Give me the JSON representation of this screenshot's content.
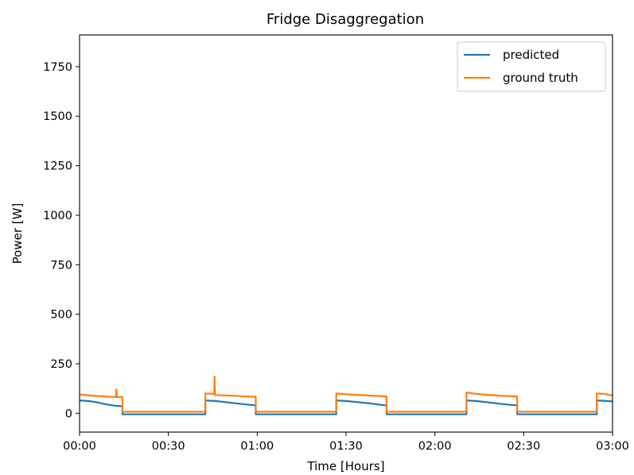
{
  "chart_data": {
    "type": "line",
    "title": "Fridge Disaggregation",
    "xlabel": "Time [Hours]",
    "ylabel": "Power [W]",
    "xlim": [
      0,
      180
    ],
    "ylim": [
      -95,
      1910
    ],
    "x_ticks": [
      0,
      30,
      60,
      90,
      120,
      150,
      180
    ],
    "x_tick_labels": [
      "00:00",
      "00:30",
      "01:00",
      "01:30",
      "02:00",
      "02:30",
      "03:00"
    ],
    "y_ticks": [
      0,
      250,
      500,
      750,
      1000,
      1250,
      1500,
      1750
    ],
    "y_tick_labels": [
      "0",
      "250",
      "500",
      "750",
      "1000",
      "1250",
      "1500",
      "1750"
    ],
    "grid": false,
    "legend_position": "top-right",
    "x_unit": "minutes",
    "series": [
      {
        "name": "predicted",
        "color": "#1f77b4",
        "points": [
          [
            0,
            65
          ],
          [
            3,
            62
          ],
          [
            6,
            55
          ],
          [
            9,
            45
          ],
          [
            12,
            38
          ],
          [
            14.5,
            35
          ],
          [
            14.5,
            -5
          ],
          [
            42.5,
            -5
          ],
          [
            42.5,
            65
          ],
          [
            46,
            62
          ],
          [
            50,
            55
          ],
          [
            54,
            48
          ],
          [
            58,
            42
          ],
          [
            59.5,
            40
          ],
          [
            59.5,
            -5
          ],
          [
            86.7,
            -5
          ],
          [
            86.7,
            65
          ],
          [
            90,
            62
          ],
          [
            94,
            56
          ],
          [
            98,
            50
          ],
          [
            102,
            42
          ],
          [
            103.7,
            40
          ],
          [
            103.7,
            -5
          ],
          [
            130.7,
            -5
          ],
          [
            130.7,
            65
          ],
          [
            134,
            62
          ],
          [
            138,
            55
          ],
          [
            142,
            48
          ],
          [
            146,
            42
          ],
          [
            147.8,
            40
          ],
          [
            147.8,
            -5
          ],
          [
            174.7,
            -5
          ],
          [
            174.7,
            65
          ],
          [
            177,
            63
          ],
          [
            180,
            60
          ]
        ]
      },
      {
        "name": "ground truth",
        "color": "#ff7f0e",
        "points": [
          [
            0,
            95
          ],
          [
            5,
            88
          ],
          [
            10,
            84
          ],
          [
            12.3,
            82
          ],
          [
            12.4,
            120
          ],
          [
            12.6,
            82
          ],
          [
            14.5,
            82
          ],
          [
            14.5,
            8
          ],
          [
            42.5,
            8
          ],
          [
            42.5,
            100
          ],
          [
            45.5,
            98
          ],
          [
            45.6,
            185
          ],
          [
            45.8,
            92
          ],
          [
            50,
            90
          ],
          [
            55,
            86
          ],
          [
            59.5,
            84
          ],
          [
            59.5,
            8
          ],
          [
            86.7,
            8
          ],
          [
            86.7,
            100
          ],
          [
            90,
            96
          ],
          [
            95,
            92
          ],
          [
            100,
            88
          ],
          [
            103.7,
            85
          ],
          [
            103.7,
            8
          ],
          [
            130.7,
            8
          ],
          [
            130.7,
            105
          ],
          [
            134,
            98
          ],
          [
            138,
            93
          ],
          [
            143,
            88
          ],
          [
            147.8,
            85
          ],
          [
            147.8,
            8
          ],
          [
            174.7,
            8
          ],
          [
            174.7,
            100
          ],
          [
            177,
            98
          ],
          [
            180,
            90
          ]
        ]
      }
    ]
  }
}
